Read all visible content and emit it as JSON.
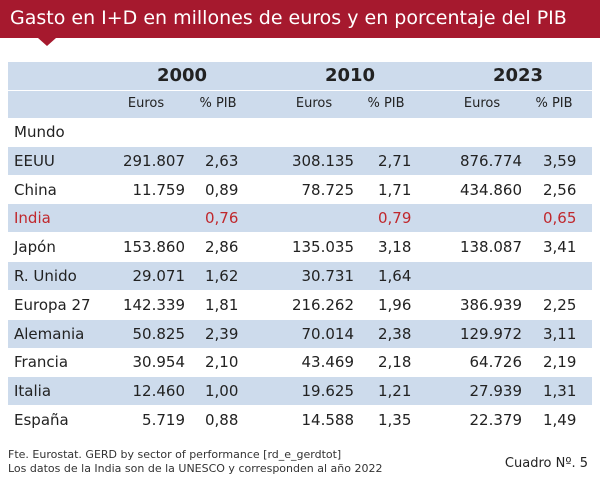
{
  "header": {
    "title": "Gasto en I+D en millones de euros y en porcentaje del PIB"
  },
  "table": {
    "years": [
      "2000",
      "2010",
      "2023"
    ],
    "columns": [
      "Euros",
      "% PIB",
      "Euros",
      "% PIB",
      "Euros",
      "% PIB"
    ],
    "rows": [
      {
        "label": "Mundo",
        "cells": [
          null,
          null,
          null,
          null,
          null,
          null
        ]
      },
      {
        "label": "EEUU",
        "cells": [
          "291.807",
          "2,63",
          "308.135",
          "2,71",
          "876.774",
          "3,59"
        ]
      },
      {
        "label": "China",
        "cells": [
          "11.759",
          "0,89",
          "78.725",
          "1,71",
          "434.860",
          "2,56"
        ]
      },
      {
        "label": "India",
        "highlight": true,
        "cells": [
          null,
          "0,76",
          null,
          "0,79",
          null,
          "0,65"
        ]
      },
      {
        "label": "Japón",
        "cells": [
          "153.860",
          "2,86",
          "135.035",
          "3,18",
          "138.087",
          "3,41"
        ]
      },
      {
        "label": "R. Unido",
        "cells": [
          "29.071",
          "1,62",
          "30.731",
          "1,64",
          null,
          null
        ]
      },
      {
        "label": "Europa 27",
        "cells": [
          "142.339",
          "1,81",
          "216.262",
          "1,96",
          "386.939",
          "2,25"
        ]
      },
      {
        "label": "Alemania",
        "cells": [
          "50.825",
          "2,39",
          "70.014",
          "2,38",
          "129.972",
          "3,11"
        ]
      },
      {
        "label": "Francia",
        "cells": [
          "30.954",
          "2,10",
          "43.469",
          "2,18",
          "64.726",
          "2,19"
        ]
      },
      {
        "label": "Italia",
        "cells": [
          "12.460",
          "1,00",
          "19.625",
          "1,21",
          "27.939",
          "1,31"
        ]
      },
      {
        "label": "España",
        "cells": [
          "5.719",
          "0,88",
          "14.588",
          "1,35",
          "22.379",
          "1,49"
        ]
      }
    ]
  },
  "footer": {
    "notes": [
      "Fte. Eurostat. GERD by sector of performance [rd_e_gerdtot]",
      "Los datos de la India son de la UNESCO y corresponden al año 2022"
    ],
    "label": "Cuadro Nº. 5"
  }
}
